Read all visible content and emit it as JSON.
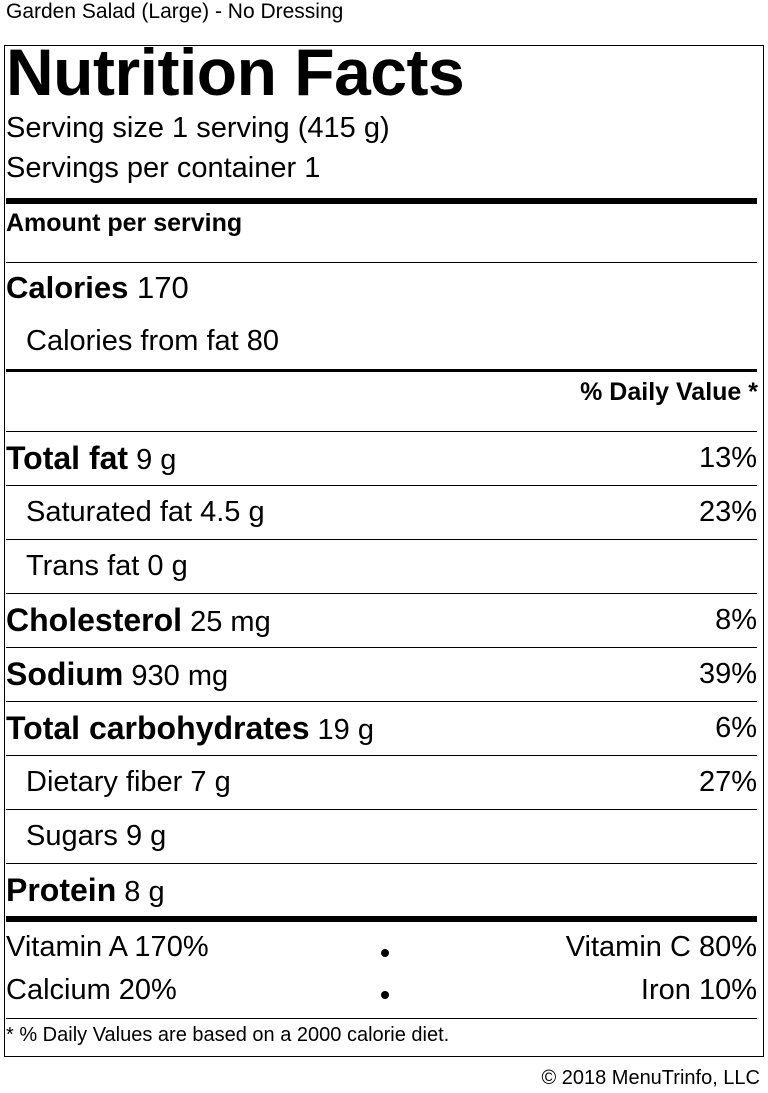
{
  "product_title": "Garden Salad (Large) - No Dressing",
  "label": {
    "heading": "Nutrition Facts",
    "serving_size": "Serving size 1 serving (415 g)",
    "servings_per_container": "Servings per container 1",
    "amount_per_serving": "Amount per serving",
    "calories_label": "Calories",
    "calories_value": "170",
    "calories_from_fat": "Calories from fat 80",
    "daily_value_header": "% Daily Value *",
    "nutrients": [
      {
        "name": "Total fat",
        "amount": "9 g",
        "dv": "13%"
      },
      {
        "name": "Saturated fat",
        "amount": "4.5 g",
        "dv": "23%"
      },
      {
        "name": "Trans fat",
        "amount": "0 g",
        "dv": ""
      },
      {
        "name": "Cholesterol",
        "amount": "25 mg",
        "dv": "8%"
      },
      {
        "name": "Sodium",
        "amount": "930 mg",
        "dv": "39%"
      },
      {
        "name": "Total carbohydrates",
        "amount": "19 g",
        "dv": "6%"
      },
      {
        "name": "Dietary fiber",
        "amount": "7 g",
        "dv": "27%"
      },
      {
        "name": "Sugars",
        "amount": "9 g",
        "dv": ""
      },
      {
        "name": "Protein",
        "amount": "8 g",
        "dv": ""
      }
    ],
    "vitamins": {
      "vitamin_a": "Vitamin A 170%",
      "vitamin_c": "Vitamin C 80%",
      "calcium": "Calcium 20%",
      "iron": "Iron 10%"
    },
    "footnote": "* % Daily Values are based on a 2000 calorie diet."
  },
  "copyright": "© 2018 MenuTrinfo, LLC"
}
